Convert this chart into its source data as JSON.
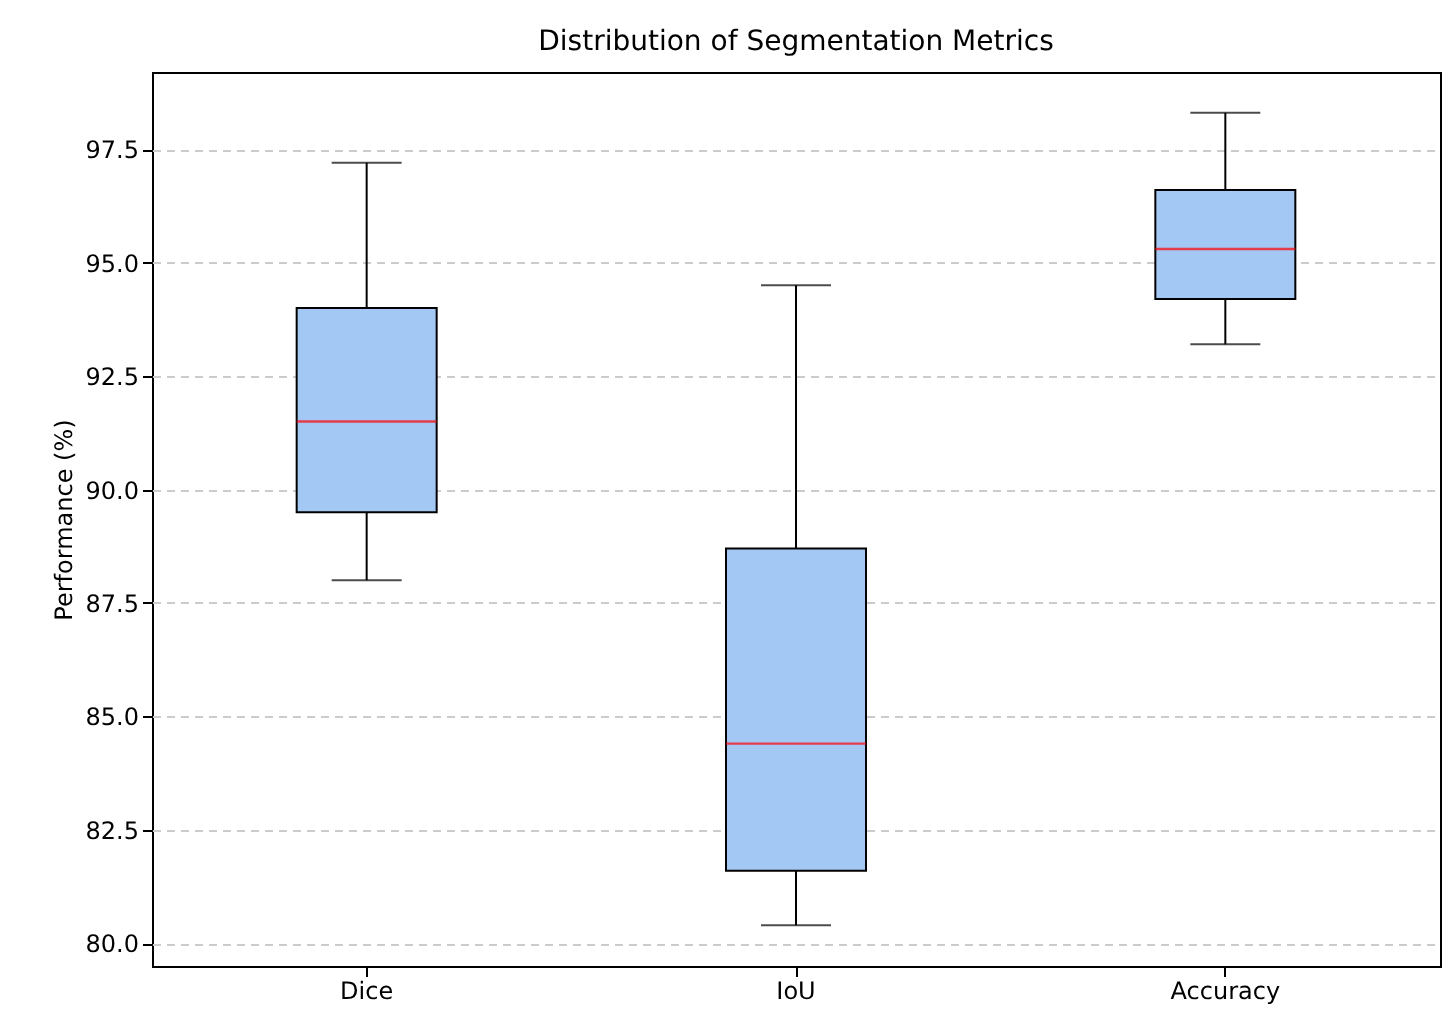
{
  "chart_data": {
    "type": "box",
    "title": "Distribution of Segmentation Metrics",
    "ylabel": "Performance (%)",
    "categories": [
      "Dice",
      "IoU",
      "Accuracy"
    ],
    "series": [
      {
        "color": "#a3c8f4",
        "boxes": [
          {
            "low": 88.0,
            "q1": 89.5,
            "median": 91.5,
            "q3": 94.0,
            "high": 97.2
          },
          {
            "low": 80.4,
            "q1": 81.6,
            "median": 84.4,
            "q3": 88.7,
            "high": 94.5
          },
          {
            "low": 93.2,
            "q1": 94.2,
            "median": 95.3,
            "q3": 96.6,
            "high": 98.3
          }
        ]
      }
    ],
    "ylim": [
      79.5,
      99.2
    ],
    "yticks": [
      {
        "value": 80,
        "label": "80.0"
      },
      {
        "value": 82.5,
        "label": "82.5"
      },
      {
        "value": 85,
        "label": "85.0"
      },
      {
        "value": 87.5,
        "label": "87.5"
      },
      {
        "value": 90,
        "label": "90.0"
      },
      {
        "value": 92.5,
        "label": "92.5"
      },
      {
        "value": 95,
        "label": "95.0"
      },
      {
        "value": 97.5,
        "label": "97.5"
      }
    ],
    "grid": "y"
  }
}
